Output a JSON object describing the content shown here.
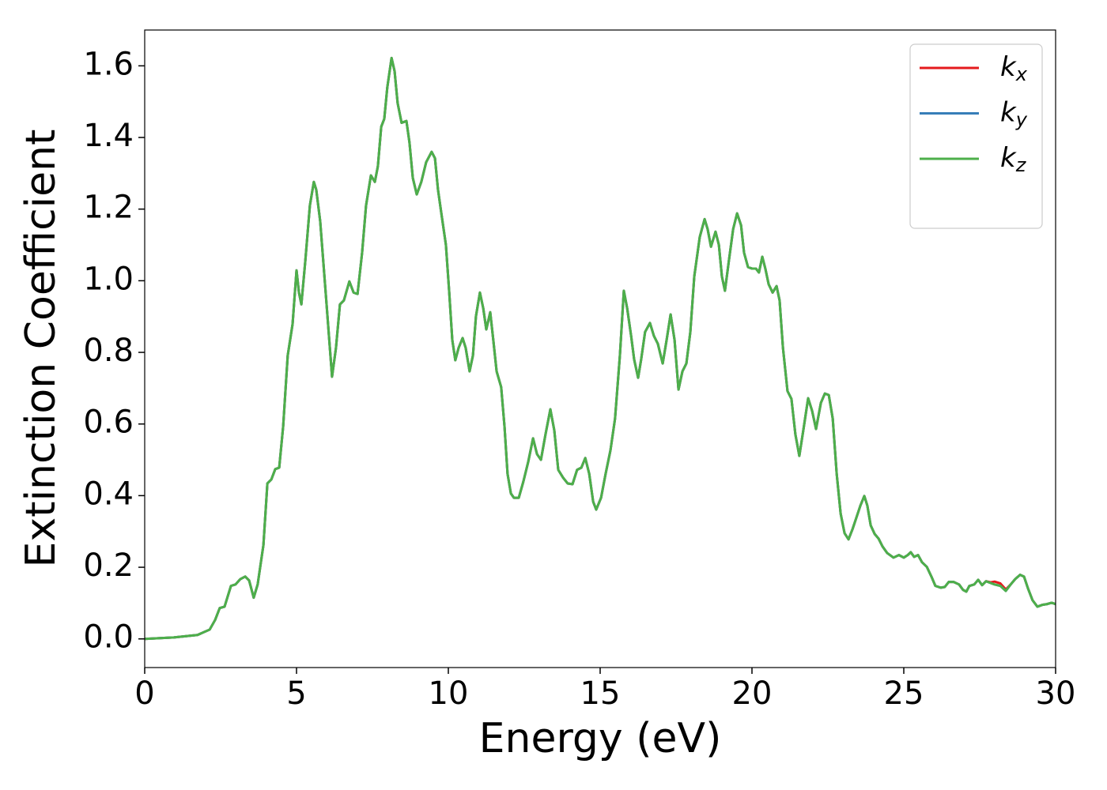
{
  "chart_data": {
    "type": "line",
    "xlabel": "Energy (eV)",
    "ylabel": "Extinction Coefficient",
    "xlim": [
      0,
      30
    ],
    "ylim": [
      -0.08,
      1.7
    ],
    "xticks": [
      0,
      5,
      10,
      15,
      20,
      25,
      30
    ],
    "yticks": [
      {
        "value": 0,
        "label": "0.0"
      },
      0.2,
      0.4,
      0.6,
      0.8,
      {
        "value": 1,
        "label": "1.0"
      },
      1.2,
      1.4,
      1.6
    ],
    "grid": false,
    "legend": "upper right",
    "x": [
      0,
      0.96,
      1.74,
      2.14,
      2.32,
      2.47,
      2.63,
      2.84,
      2.99,
      3.15,
      3.31,
      3.44,
      3.59,
      3.72,
      3.91,
      4.04,
      4.17,
      4.3,
      4.43,
      4.56,
      4.71,
      4.87,
      5.0,
      5.08,
      5.16,
      5.29,
      5.44,
      5.57,
      5.65,
      5.78,
      5.96,
      6.17,
      6.3,
      6.43,
      6.56,
      6.74,
      6.88,
      7.01,
      7.16,
      7.29,
      7.45,
      7.58,
      7.68,
      7.79,
      7.89,
      7.99,
      8.13,
      8.23,
      8.33,
      8.46,
      8.62,
      8.72,
      8.83,
      8.96,
      9.11,
      9.27,
      9.45,
      9.56,
      9.66,
      9.77,
      9.92,
      10.03,
      10.13,
      10.23,
      10.34,
      10.47,
      10.57,
      10.7,
      10.81,
      10.91,
      11.04,
      11.15,
      11.25,
      11.38,
      11.48,
      11.59,
      11.74,
      11.85,
      11.95,
      12.06,
      12.16,
      12.32,
      12.47,
      12.63,
      12.79,
      12.92,
      13.05,
      13.2,
      13.36,
      13.49,
      13.62,
      13.78,
      13.93,
      14.09,
      14.24,
      14.38,
      14.51,
      14.64,
      14.77,
      14.87,
      15.03,
      15.18,
      15.34,
      15.49,
      15.65,
      15.78,
      15.89,
      16.02,
      16.12,
      16.25,
      16.35,
      16.48,
      16.64,
      16.77,
      16.9,
      17.06,
      17.19,
      17.32,
      17.45,
      17.58,
      17.71,
      17.84,
      17.97,
      18.1,
      18.28,
      18.44,
      18.54,
      18.65,
      18.8,
      18.91,
      19.01,
      19.11,
      19.24,
      19.38,
      19.51,
      19.64,
      19.74,
      19.87,
      20.0,
      20.13,
      20.23,
      20.34,
      20.44,
      20.55,
      20.68,
      20.81,
      20.91,
      21.02,
      21.17,
      21.3,
      21.43,
      21.56,
      21.69,
      21.85,
      21.98,
      22.11,
      22.27,
      22.4,
      22.53,
      22.66,
      22.79,
      22.92,
      23.05,
      23.18,
      23.31,
      23.44,
      23.57,
      23.7,
      23.8,
      23.91,
      24.04,
      24.17,
      24.3,
      24.45,
      24.66,
      24.84,
      25.0,
      25.13,
      25.23,
      25.34,
      25.47,
      25.6,
      25.76,
      25.91,
      26.04,
      26.22,
      26.35,
      26.48,
      26.64,
      26.82,
      26.95,
      27.06,
      27.16,
      27.32,
      27.45,
      27.58,
      27.71,
      27.86,
      27.99,
      28.18,
      28.36,
      28.52,
      28.67,
      28.83,
      28.96,
      29.09,
      29.24,
      29.4,
      29.56,
      29.71,
      29.87,
      30.0
    ],
    "series": [
      {
        "name": "kx",
        "color": "#e41a1c",
        "values": [
          0,
          0.004,
          0.011,
          0.026,
          0.053,
          0.086,
          0.09,
          0.148,
          0.152,
          0.167,
          0.174,
          0.163,
          0.115,
          0.152,
          0.262,
          0.434,
          0.445,
          0.474,
          0.478,
          0.593,
          0.791,
          0.879,
          1.029,
          0.967,
          0.934,
          1.056,
          1.21,
          1.276,
          1.254,
          1.166,
          0.967,
          0.732,
          0.813,
          0.934,
          0.945,
          0.998,
          0.967,
          0.963,
          1.078,
          1.21,
          1.294,
          1.276,
          1.32,
          1.43,
          1.452,
          1.54,
          1.622,
          1.585,
          1.496,
          1.441,
          1.446,
          1.386,
          1.287,
          1.241,
          1.276,
          1.331,
          1.36,
          1.342,
          1.254,
          1.188,
          1.1,
          0.967,
          0.835,
          0.778,
          0.813,
          0.84,
          0.813,
          0.747,
          0.791,
          0.901,
          0.967,
          0.923,
          0.864,
          0.912,
          0.835,
          0.747,
          0.703,
          0.593,
          0.461,
          0.406,
          0.394,
          0.394,
          0.439,
          0.494,
          0.56,
          0.516,
          0.5,
          0.571,
          0.641,
          0.582,
          0.472,
          0.45,
          0.434,
          0.432,
          0.472,
          0.478,
          0.505,
          0.461,
          0.383,
          0.361,
          0.394,
          0.461,
          0.527,
          0.615,
          0.791,
          0.972,
          0.923,
          0.846,
          0.78,
          0.729,
          0.78,
          0.857,
          0.882,
          0.846,
          0.824,
          0.769,
          0.835,
          0.906,
          0.835,
          0.696,
          0.747,
          0.769,
          0.857,
          1.012,
          1.122,
          1.172,
          1.144,
          1.095,
          1.137,
          1.1,
          1.012,
          0.972,
          1.056,
          1.144,
          1.188,
          1.155,
          1.078,
          1.038,
          1.034,
          1.034,
          1.023,
          1.067,
          1.034,
          0.99,
          0.967,
          0.985,
          0.945,
          0.813,
          0.692,
          0.67,
          0.571,
          0.511,
          0.582,
          0.672,
          0.637,
          0.586,
          0.659,
          0.685,
          0.681,
          0.615,
          0.461,
          0.35,
          0.295,
          0.278,
          0.306,
          0.339,
          0.372,
          0.399,
          0.372,
          0.317,
          0.293,
          0.28,
          0.258,
          0.24,
          0.227,
          0.234,
          0.227,
          0.234,
          0.242,
          0.229,
          0.234,
          0.214,
          0.201,
          0.174,
          0.148,
          0.143,
          0.145,
          0.159,
          0.159,
          0.152,
          0.137,
          0.132,
          0.148,
          0.152,
          0.165,
          0.15,
          0.161,
          0.158,
          0.16,
          0.155,
          0.138,
          0.152,
          0.167,
          0.179,
          0.174,
          0.141,
          0.108,
          0.09,
          0.095,
          0.097,
          0.101,
          0.097
        ]
      },
      {
        "name": "ky",
        "color": "#377eb8",
        "values": [
          0,
          0.004,
          0.011,
          0.026,
          0.053,
          0.086,
          0.09,
          0.148,
          0.152,
          0.167,
          0.174,
          0.163,
          0.115,
          0.152,
          0.262,
          0.434,
          0.445,
          0.474,
          0.478,
          0.593,
          0.791,
          0.879,
          1.029,
          0.967,
          0.934,
          1.056,
          1.21,
          1.276,
          1.254,
          1.166,
          0.967,
          0.732,
          0.813,
          0.934,
          0.945,
          0.998,
          0.967,
          0.963,
          1.078,
          1.21,
          1.294,
          1.276,
          1.32,
          1.43,
          1.452,
          1.54,
          1.622,
          1.585,
          1.496,
          1.441,
          1.446,
          1.386,
          1.287,
          1.241,
          1.276,
          1.331,
          1.36,
          1.342,
          1.254,
          1.188,
          1.1,
          0.967,
          0.835,
          0.778,
          0.813,
          0.84,
          0.813,
          0.747,
          0.791,
          0.901,
          0.967,
          0.923,
          0.864,
          0.912,
          0.835,
          0.747,
          0.703,
          0.593,
          0.461,
          0.406,
          0.394,
          0.394,
          0.439,
          0.494,
          0.56,
          0.516,
          0.5,
          0.571,
          0.641,
          0.582,
          0.472,
          0.45,
          0.434,
          0.432,
          0.472,
          0.478,
          0.505,
          0.461,
          0.383,
          0.361,
          0.394,
          0.461,
          0.527,
          0.615,
          0.791,
          0.972,
          0.923,
          0.846,
          0.78,
          0.729,
          0.78,
          0.857,
          0.882,
          0.846,
          0.824,
          0.769,
          0.835,
          0.906,
          0.835,
          0.696,
          0.747,
          0.769,
          0.857,
          1.012,
          1.122,
          1.172,
          1.144,
          1.095,
          1.137,
          1.1,
          1.012,
          0.972,
          1.056,
          1.144,
          1.188,
          1.155,
          1.078,
          1.038,
          1.034,
          1.034,
          1.023,
          1.067,
          1.034,
          0.99,
          0.967,
          0.985,
          0.945,
          0.813,
          0.692,
          0.67,
          0.571,
          0.511,
          0.582,
          0.672,
          0.637,
          0.586,
          0.659,
          0.685,
          0.681,
          0.615,
          0.461,
          0.35,
          0.295,
          0.278,
          0.306,
          0.339,
          0.372,
          0.399,
          0.372,
          0.317,
          0.293,
          0.28,
          0.258,
          0.24,
          0.227,
          0.234,
          0.227,
          0.234,
          0.242,
          0.229,
          0.234,
          0.214,
          0.201,
          0.174,
          0.148,
          0.143,
          0.145,
          0.159,
          0.159,
          0.152,
          0.137,
          0.132,
          0.148,
          0.152,
          0.165,
          0.15,
          0.161,
          0.156,
          0.152,
          0.148,
          0.134,
          0.152,
          0.167,
          0.179,
          0.174,
          0.141,
          0.108,
          0.09,
          0.095,
          0.097,
          0.101,
          0.097
        ]
      },
      {
        "name": "kz",
        "color": "#4daf4a",
        "values": [
          0,
          0.004,
          0.011,
          0.026,
          0.053,
          0.086,
          0.09,
          0.148,
          0.152,
          0.167,
          0.174,
          0.163,
          0.115,
          0.152,
          0.262,
          0.434,
          0.445,
          0.474,
          0.478,
          0.593,
          0.791,
          0.879,
          1.029,
          0.967,
          0.934,
          1.056,
          1.21,
          1.276,
          1.254,
          1.166,
          0.967,
          0.732,
          0.813,
          0.934,
          0.945,
          0.998,
          0.967,
          0.963,
          1.078,
          1.21,
          1.294,
          1.276,
          1.32,
          1.43,
          1.452,
          1.54,
          1.622,
          1.585,
          1.496,
          1.441,
          1.446,
          1.386,
          1.287,
          1.241,
          1.276,
          1.331,
          1.36,
          1.342,
          1.254,
          1.188,
          1.1,
          0.967,
          0.835,
          0.778,
          0.813,
          0.84,
          0.813,
          0.747,
          0.791,
          0.901,
          0.967,
          0.923,
          0.864,
          0.912,
          0.835,
          0.747,
          0.703,
          0.593,
          0.461,
          0.406,
          0.394,
          0.394,
          0.439,
          0.494,
          0.56,
          0.516,
          0.5,
          0.571,
          0.641,
          0.582,
          0.472,
          0.45,
          0.434,
          0.432,
          0.472,
          0.478,
          0.505,
          0.461,
          0.383,
          0.361,
          0.394,
          0.461,
          0.527,
          0.615,
          0.791,
          0.972,
          0.923,
          0.846,
          0.78,
          0.729,
          0.78,
          0.857,
          0.882,
          0.846,
          0.824,
          0.769,
          0.835,
          0.906,
          0.835,
          0.696,
          0.747,
          0.769,
          0.857,
          1.012,
          1.122,
          1.172,
          1.144,
          1.095,
          1.137,
          1.1,
          1.012,
          0.972,
          1.056,
          1.144,
          1.188,
          1.155,
          1.078,
          1.038,
          1.034,
          1.034,
          1.023,
          1.067,
          1.034,
          0.99,
          0.967,
          0.985,
          0.945,
          0.813,
          0.692,
          0.67,
          0.571,
          0.511,
          0.582,
          0.672,
          0.637,
          0.586,
          0.659,
          0.685,
          0.681,
          0.615,
          0.461,
          0.35,
          0.295,
          0.278,
          0.306,
          0.339,
          0.372,
          0.399,
          0.372,
          0.317,
          0.293,
          0.28,
          0.258,
          0.24,
          0.227,
          0.234,
          0.227,
          0.234,
          0.242,
          0.229,
          0.234,
          0.214,
          0.201,
          0.174,
          0.148,
          0.143,
          0.145,
          0.159,
          0.159,
          0.152,
          0.137,
          0.132,
          0.148,
          0.152,
          0.165,
          0.15,
          0.161,
          0.156,
          0.152,
          0.148,
          0.134,
          0.152,
          0.167,
          0.179,
          0.174,
          0.141,
          0.108,
          0.09,
          0.095,
          0.097,
          0.101,
          0.097
        ]
      }
    ]
  }
}
